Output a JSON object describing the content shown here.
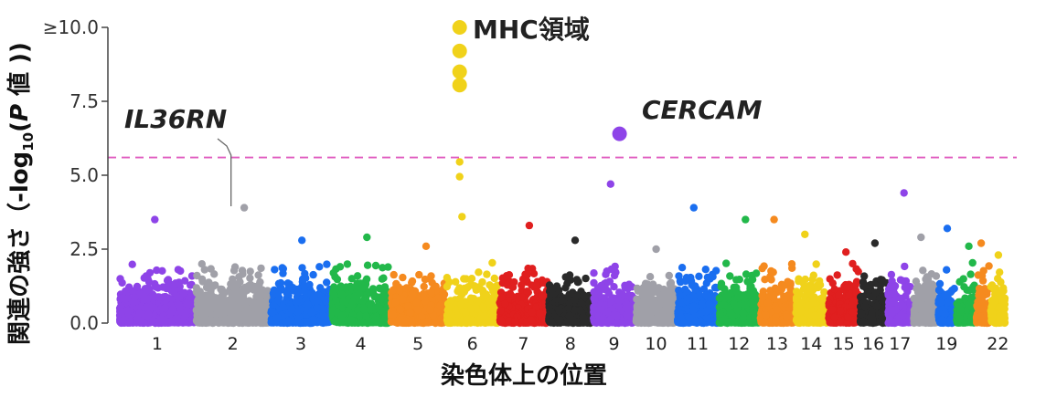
{
  "chart_data": {
    "type": "scatter",
    "subtype": "manhattan",
    "title": "",
    "xlabel": "染色体上の位置",
    "ylabel_parts": [
      "関連の強さ（-log",
      "10",
      "(",
      "P",
      " 値 ))"
    ],
    "ylim": [
      0,
      10
    ],
    "yticks": [
      "0.0",
      "2.5",
      "5.0",
      "7.5",
      "≥10.0"
    ],
    "ytick_values": [
      0,
      2.5,
      5.0,
      7.5,
      10.0
    ],
    "significance_threshold": 5.6,
    "threshold_color": "#e05cc0",
    "grid": false,
    "chromosomes": [
      {
        "name": "1",
        "label": "1",
        "color": "#8e44e8",
        "max": 3.5
      },
      {
        "name": "2",
        "label": "2",
        "color": "#a0a0a8",
        "max": 3.9
      },
      {
        "name": "3",
        "label": "3",
        "color": "#1a6ef0",
        "max": 2.8
      },
      {
        "name": "4",
        "label": "4",
        "color": "#22b84a",
        "max": 2.9
      },
      {
        "name": "5",
        "label": "5",
        "color": "#f58a1f",
        "max": 2.6
      },
      {
        "name": "6",
        "label": "6",
        "color": "#f0d21a",
        "max": 3.6
      },
      {
        "name": "7",
        "label": "7",
        "color": "#e01f1f",
        "max": 3.3
      },
      {
        "name": "8",
        "label": "8",
        "color": "#2a2a2a",
        "max": 2.8
      },
      {
        "name": "9",
        "label": "9",
        "color": "#8e44e8",
        "max": 4.7
      },
      {
        "name": "10",
        "label": "10",
        "color": "#a0a0a8",
        "max": 2.5
      },
      {
        "name": "11",
        "label": "11",
        "color": "#1a6ef0",
        "max": 3.9
      },
      {
        "name": "12",
        "label": "12",
        "color": "#22b84a",
        "max": 3.5
      },
      {
        "name": "13",
        "label": "13",
        "color": "#f58a1f",
        "max": 3.5
      },
      {
        "name": "14",
        "label": "14",
        "color": "#f0d21a",
        "max": 3.0
      },
      {
        "name": "15",
        "label": "15",
        "color": "#e01f1f",
        "max": 2.4
      },
      {
        "name": "16",
        "label": "16",
        "color": "#2a2a2a",
        "max": 2.7
      },
      {
        "name": "17",
        "label": "17",
        "color": "#8e44e8",
        "max": 4.4
      },
      {
        "name": "18",
        "label": "",
        "color": "#a0a0a8",
        "max": 2.9
      },
      {
        "name": "19",
        "label": "19",
        "color": "#1a6ef0",
        "max": 3.2
      },
      {
        "name": "20",
        "label": "",
        "color": "#22b84a",
        "max": 2.6
      },
      {
        "name": "21",
        "label": "",
        "color": "#f58a1f",
        "max": 2.7
      },
      {
        "name": "22",
        "label": "22",
        "color": "#f0d21a",
        "max": 2.3
      }
    ],
    "highlight_points": [
      {
        "chromosome": "6",
        "y": 10.0,
        "color": "#f0d21a"
      },
      {
        "chromosome": "6",
        "y": 9.2,
        "color": "#f0d21a"
      },
      {
        "chromosome": "6",
        "y": 8.5,
        "color": "#f0d21a"
      },
      {
        "chromosome": "6",
        "y": 8.05,
        "color": "#f0d21a"
      },
      {
        "chromosome": "6",
        "y": 5.45,
        "color": "#f0d21a"
      },
      {
        "chromosome": "6",
        "y": 4.95,
        "color": "#f0d21a"
      },
      {
        "chromosome": "9",
        "y": 6.4,
        "color": "#8e44e8"
      }
    ],
    "annotations": [
      {
        "text": "MHC領域",
        "italic": false,
        "near_chromosome": "6"
      },
      {
        "text": "IL36RN",
        "italic": true,
        "near_chromosome": "2"
      },
      {
        "text": "CERCAM",
        "italic": true,
        "near_chromosome": "9"
      }
    ]
  }
}
